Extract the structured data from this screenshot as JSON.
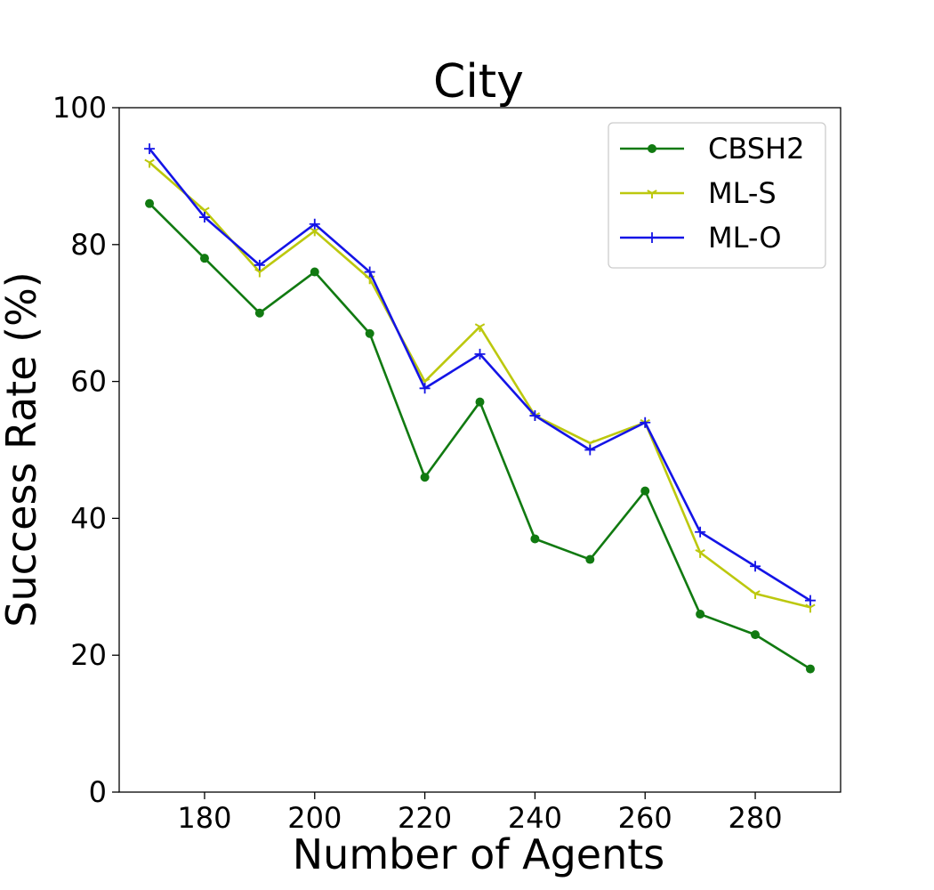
{
  "chart_data": {
    "type": "line",
    "title": "City",
    "xlabel": "Number of Agents",
    "ylabel": "Success Rate (%)",
    "x": [
      170,
      180,
      190,
      200,
      210,
      220,
      230,
      240,
      250,
      260,
      270,
      280,
      290
    ],
    "xlim": [
      164.5,
      295.5
    ],
    "ylim": [
      0,
      100
    ],
    "xticks": [
      180,
      200,
      220,
      240,
      260,
      280
    ],
    "yticks": [
      0,
      20,
      40,
      60,
      80,
      100
    ],
    "grid": false,
    "legend_position": "top-right",
    "series": [
      {
        "name": "CBSH2",
        "color": "#117a11",
        "marker": "circle",
        "values": [
          86,
          78,
          70,
          76,
          67,
          46,
          57,
          37,
          34,
          44,
          26,
          23,
          18
        ]
      },
      {
        "name": "ML-S",
        "color": "#bcc80e",
        "marker": "tri",
        "values": [
          92,
          85,
          76,
          82,
          75,
          60,
          68,
          55,
          51,
          54,
          35,
          29,
          27
        ]
      },
      {
        "name": "ML-O",
        "color": "#1414e6",
        "marker": "plus",
        "values": [
          94,
          84,
          77,
          83,
          76,
          59,
          64,
          55,
          50,
          54,
          38,
          33,
          28
        ]
      }
    ]
  }
}
